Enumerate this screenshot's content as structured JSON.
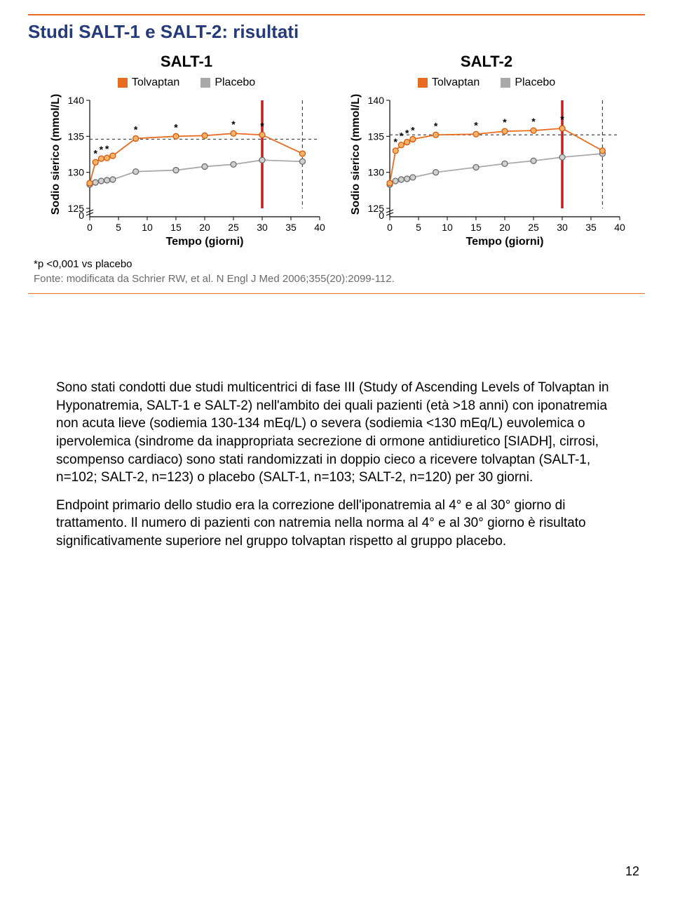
{
  "figure": {
    "title": "Studi SALT-1 e SALT-2: risultati",
    "pnote": "*p <0,001 vs placebo",
    "source": "Fonte: modificata da Schrier RW, et al. N Engl J Med 2006;355(20):2099-112.",
    "legend": {
      "tolvaptan_label": "Tolvaptan",
      "placebo_label": "Placebo",
      "tolvaptan_color": "#e86c1f",
      "placebo_color": "#a9a9a9"
    },
    "xlabel": "Tempo (giorni)",
    "ylabel": "Sodio sierico (mmol/L)",
    "chart_style": {
      "type": "line",
      "line_width": 1.8,
      "marker_radius": 4,
      "marker_stroke_tolv": "#d25a0c",
      "marker_fill_tolv": "#f7b26a",
      "marker_stroke_plac": "#6b6b6b",
      "marker_fill_plac": "#d0d0d0",
      "hline_dash_color": "#444444",
      "vline_solid_color": "#c21f1f",
      "vline_dash_color": "#444444",
      "background": "#ffffff",
      "axis_color": "#000000"
    },
    "axes": {
      "x": {
        "min": 0,
        "max": 40,
        "ticks": [
          0,
          5,
          10,
          15,
          20,
          25,
          30,
          35,
          40
        ]
      },
      "y": {
        "min": 125,
        "max": 140,
        "ticks": [
          125,
          130,
          135,
          140
        ],
        "break_below": 125,
        "zero_label": "0"
      }
    },
    "vlines": {
      "solid": 30,
      "dashed": 37
    },
    "panels": [
      {
        "heading": "SALT-1",
        "hline_y": 134.6,
        "tolvaptan": {
          "x": [
            0,
            1,
            2,
            3,
            4,
            8,
            15,
            20,
            25,
            30,
            37
          ],
          "y": [
            128.5,
            131.4,
            131.9,
            132.0,
            132.3,
            134.7,
            135.0,
            135.1,
            135.4,
            135.2,
            132.6
          ]
        },
        "placebo": {
          "x": [
            0,
            1,
            2,
            3,
            4,
            8,
            15,
            20,
            25,
            30,
            37
          ],
          "y": [
            128.3,
            128.6,
            128.8,
            128.9,
            129.0,
            130.1,
            130.3,
            130.8,
            131.1,
            131.7,
            131.5
          ]
        },
        "stars": [
          {
            "series": "tolvaptan",
            "i": 1
          },
          {
            "series": "tolvaptan",
            "i": 2
          },
          {
            "series": "tolvaptan",
            "i": 3
          },
          {
            "series": "tolvaptan",
            "i": 5
          },
          {
            "series": "tolvaptan",
            "i": 6
          },
          {
            "series": "tolvaptan",
            "i": 8
          },
          {
            "series": "tolvaptan",
            "i": 9
          }
        ]
      },
      {
        "heading": "SALT-2",
        "hline_y": 135.2,
        "tolvaptan": {
          "x": [
            0,
            1,
            2,
            3,
            4,
            8,
            15,
            20,
            25,
            30,
            37
          ],
          "y": [
            128.5,
            133.0,
            133.8,
            134.2,
            134.6,
            135.2,
            135.3,
            135.7,
            135.8,
            136.1,
            133.0
          ]
        },
        "placebo": {
          "x": [
            0,
            1,
            2,
            3,
            4,
            8,
            15,
            20,
            25,
            30,
            37
          ],
          "y": [
            128.3,
            128.8,
            129.0,
            129.1,
            129.3,
            130.0,
            130.7,
            131.2,
            131.6,
            132.1,
            132.6
          ]
        },
        "stars": [
          {
            "series": "tolvaptan",
            "i": 1
          },
          {
            "series": "tolvaptan",
            "i": 2
          },
          {
            "series": "tolvaptan",
            "i": 3
          },
          {
            "series": "tolvaptan",
            "i": 4
          },
          {
            "series": "tolvaptan",
            "i": 5
          },
          {
            "series": "tolvaptan",
            "i": 6
          },
          {
            "series": "tolvaptan",
            "i": 7
          },
          {
            "series": "tolvaptan",
            "i": 8
          },
          {
            "series": "tolvaptan",
            "i": 9
          }
        ]
      }
    ]
  },
  "paragraphs": [
    "Sono stati condotti due studi multicentrici di fase III (Study of Ascending Levels of Tolvaptan in Hyponatremia, SALT-1 e SALT-2) nell'ambito dei quali pazienti (età >18 anni) con iponatremia non acuta lieve (sodiemia 130-134 mEq/L) o severa (sodiemia <130 mEq/L) euvolemica o ipervolemica (sindrome da inappropriata secrezione di ormone antidiuretico [SIADH], cirrosi, scompenso cardiaco) sono stati randomizzati in doppio cieco a ricevere tolvaptan (SALT-1, n=102; SALT-2, n=123) o placebo (SALT-1, n=103; SALT-2, n=120) per 30 giorni.",
    "Endpoint primario dello studio era la correzione dell'iponatremia al 4° e al 30° giorno di trattamento. Il numero di pazienti con natremia nella norma al 4° e al 30° giorno è risultato significativamente superiore nel gruppo tolvaptan rispetto al gruppo placebo."
  ],
  "page_number": "12"
}
